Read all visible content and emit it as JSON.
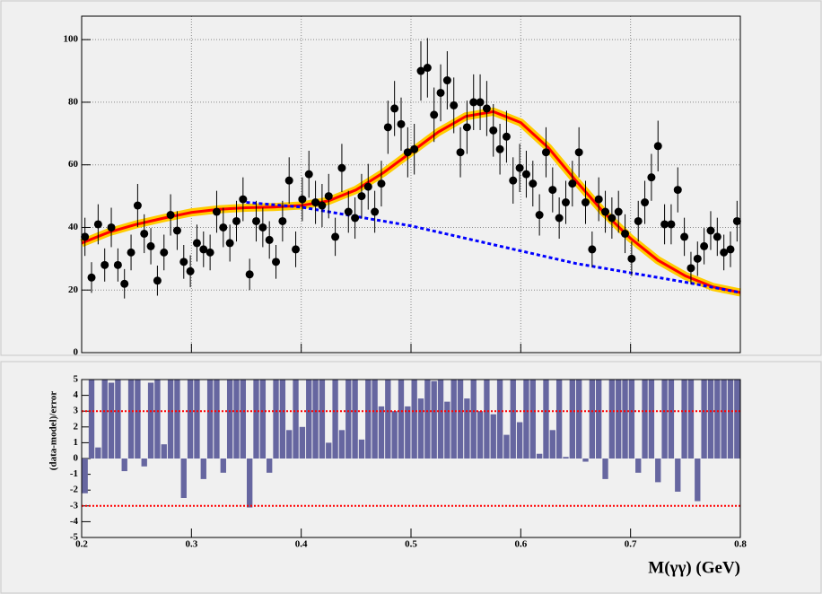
{
  "chart_data": [
    {
      "type": "errorbar",
      "x": [
        0.203,
        0.209,
        0.215,
        0.221,
        0.227,
        0.233,
        0.239,
        0.245,
        0.251,
        0.257,
        0.263,
        0.269,
        0.275,
        0.281,
        0.287,
        0.293,
        0.299,
        0.305,
        0.311,
        0.317,
        0.323,
        0.329,
        0.335,
        0.341,
        0.347,
        0.353,
        0.359,
        0.365,
        0.371,
        0.377,
        0.383,
        0.389,
        0.395,
        0.401,
        0.407,
        0.413,
        0.419,
        0.425,
        0.431,
        0.437,
        0.443,
        0.449,
        0.455,
        0.461,
        0.467,
        0.473,
        0.479,
        0.485,
        0.491,
        0.497,
        0.503,
        0.509,
        0.515,
        0.521,
        0.527,
        0.533,
        0.539,
        0.545,
        0.551,
        0.557,
        0.563,
        0.569,
        0.575,
        0.581,
        0.587,
        0.593,
        0.599,
        0.605,
        0.611,
        0.617,
        0.623,
        0.629,
        0.635,
        0.641,
        0.647,
        0.653,
        0.659,
        0.665,
        0.671,
        0.677,
        0.683,
        0.689,
        0.695,
        0.701,
        0.707,
        0.713,
        0.719,
        0.725,
        0.731,
        0.737,
        0.743,
        0.749,
        0.755,
        0.761,
        0.767,
        0.773,
        0.779,
        0.785,
        0.791,
        0.797
      ],
      "values": [
        37,
        24,
        41,
        28,
        40,
        28,
        22,
        32,
        47,
        38,
        34,
        23,
        32,
        44,
        39,
        29,
        26,
        35,
        33,
        32,
        45,
        40,
        35,
        42,
        49,
        25,
        42,
        40,
        36,
        29,
        42,
        55,
        33,
        49,
        57,
        48,
        47,
        50,
        37,
        59,
        45,
        43,
        50,
        53,
        45,
        54,
        72,
        78,
        73,
        64,
        65,
        90,
        91,
        76,
        83,
        87,
        79,
        64,
        72,
        80,
        80,
        78,
        71,
        65,
        69,
        55,
        59,
        57,
        54,
        44,
        64,
        52,
        43,
        48,
        54,
        64,
        48,
        33,
        49,
        45,
        43,
        45,
        38,
        30,
        42,
        48,
        56,
        66,
        41,
        41,
        52,
        37,
        27,
        30,
        34,
        39,
        37,
        32,
        33,
        42
      ],
      "errors": [
        6.1,
        4.9,
        6.4,
        5.3,
        6.3,
        5.3,
        4.7,
        5.7,
        6.9,
        6.2,
        5.8,
        4.8,
        5.7,
        6.6,
        6.2,
        5.4,
        5.1,
        5.9,
        5.7,
        5.7,
        6.7,
        6.3,
        5.9,
        6.5,
        7.0,
        5.0,
        6.5,
        6.3,
        6.0,
        5.4,
        6.5,
        7.4,
        5.7,
        7.0,
        7.5,
        6.9,
        6.9,
        7.1,
        6.1,
        7.7,
        6.7,
        6.6,
        7.1,
        7.3,
        6.7,
        7.3,
        8.5,
        8.8,
        8.5,
        8.0,
        8.1,
        9.5,
        9.5,
        8.7,
        9.1,
        9.3,
        8.9,
        8.0,
        8.5,
        8.9,
        8.9,
        8.8,
        8.4,
        8.1,
        8.3,
        7.4,
        7.7,
        7.5,
        7.3,
        6.6,
        8.0,
        7.2,
        6.6,
        6.9,
        7.3,
        8.0,
        6.9,
        5.7,
        7.0,
        6.7,
        6.6,
        6.7,
        6.2,
        5.5,
        6.5,
        6.9,
        7.5,
        8.1,
        6.4,
        6.4,
        7.2,
        6.1,
        5.2,
        5.5,
        5.8,
        6.2,
        6.1,
        5.7,
        5.7,
        6.5
      ],
      "color": "#000000",
      "fits": [
        {
          "x": [
            0.2,
            0.225,
            0.25,
            0.275,
            0.3,
            0.325,
            0.35,
            0.375,
            0.4,
            0.425,
            0.45,
            0.475,
            0.5,
            0.525,
            0.55,
            0.575,
            0.6,
            0.625,
            0.65,
            0.675,
            0.7,
            0.725,
            0.75,
            0.775,
            0.8
          ],
          "values": [
            35,
            38.5,
            41,
            43,
            44.8,
            45.8,
            46.3,
            46.5,
            47,
            48.5,
            52,
            57.5,
            64,
            70.5,
            75.5,
            77,
            73.5,
            65.5,
            55,
            45,
            36.5,
            29.5,
            24.5,
            21,
            19.2
          ],
          "color": "#ff0000",
          "band_color": "#ffcc00",
          "dashed": false
        },
        {
          "x": [
            0.35,
            0.4,
            0.45,
            0.5,
            0.55,
            0.6,
            0.65,
            0.7,
            0.75,
            0.8
          ],
          "values": [
            48,
            46.5,
            43.5,
            40.5,
            36.5,
            32.5,
            28.5,
            25.5,
            22.5,
            19.2
          ],
          "color": "#0000ff",
          "dashed": true
        }
      ],
      "xlim": [
        0.2,
        0.8
      ],
      "xticks": [
        0.2,
        0.3,
        0.4,
        0.5,
        0.6,
        0.7,
        0.8
      ],
      "ylim": [
        0,
        107.5
      ],
      "yticks": [
        0,
        20,
        40,
        60,
        80,
        100
      ],
      "grid": true
    },
    {
      "type": "bar",
      "x": [
        0.203,
        0.209,
        0.215,
        0.221,
        0.227,
        0.233,
        0.239,
        0.245,
        0.251,
        0.257,
        0.263,
        0.269,
        0.275,
        0.281,
        0.287,
        0.293,
        0.299,
        0.305,
        0.311,
        0.317,
        0.323,
        0.329,
        0.335,
        0.341,
        0.347,
        0.353,
        0.359,
        0.365,
        0.371,
        0.377,
        0.383,
        0.389,
        0.395,
        0.401,
        0.407,
        0.413,
        0.419,
        0.425,
        0.431,
        0.437,
        0.443,
        0.449,
        0.455,
        0.461,
        0.467,
        0.473,
        0.479,
        0.485,
        0.491,
        0.497,
        0.503,
        0.509,
        0.515,
        0.521,
        0.527,
        0.533,
        0.539,
        0.545,
        0.551,
        0.557,
        0.563,
        0.569,
        0.575,
        0.581,
        0.587,
        0.593,
        0.599,
        0.605,
        0.611,
        0.617,
        0.623,
        0.629,
        0.635,
        0.641,
        0.647,
        0.653,
        0.659,
        0.665,
        0.671,
        0.677,
        0.683,
        0.689,
        0.695,
        0.701,
        0.707,
        0.713,
        0.719,
        0.725,
        0.731,
        0.737,
        0.743,
        0.749,
        0.755,
        0.761,
        0.767,
        0.773,
        0.779,
        0.785,
        0.791,
        0.797
      ],
      "values": [
        -2.2,
        5,
        0.7,
        5,
        4.8,
        5,
        -0.8,
        5,
        5,
        -0.5,
        4.8,
        5,
        0.9,
        5,
        5,
        -2.5,
        5,
        5,
        -1.3,
        5,
        5,
        -0.9,
        5,
        5,
        5,
        -3.1,
        5,
        5,
        -0.9,
        5,
        5,
        1.8,
        5,
        2.0,
        5,
        5,
        5,
        1.0,
        5,
        1.8,
        5,
        5,
        1.2,
        5,
        5,
        3.3,
        5,
        3.0,
        5,
        3.3,
        5,
        3.8,
        5,
        4.9,
        5,
        3.6,
        5,
        5,
        3.8,
        5,
        3.0,
        5,
        2.8,
        5,
        1.5,
        5,
        2.3,
        5,
        5,
        0.3,
        5,
        1.8,
        5,
        0.1,
        5,
        5,
        -0.2,
        5,
        5,
        -1.3,
        5,
        5,
        5,
        5,
        -0.9,
        5,
        5,
        -1.5,
        5,
        5,
        -2.1,
        5,
        5,
        -2.7,
        5,
        5,
        5,
        5,
        5,
        5
      ],
      "color": "#6666a0",
      "ref_lines": [
        -3,
        3
      ],
      "ref_color": "#ff0000",
      "xlim": [
        0.2,
        0.8
      ],
      "xticks": [
        0.2,
        0.3,
        0.4,
        0.5,
        0.6,
        0.7,
        0.8
      ],
      "ylim": [
        -5,
        5
      ],
      "yticks": [
        -5,
        -4,
        -3,
        -2,
        -1,
        0,
        1,
        2,
        3,
        4,
        5
      ],
      "ylabel": "(data-model)/error",
      "xlabel": "M(γγ) (GeV)"
    }
  ]
}
